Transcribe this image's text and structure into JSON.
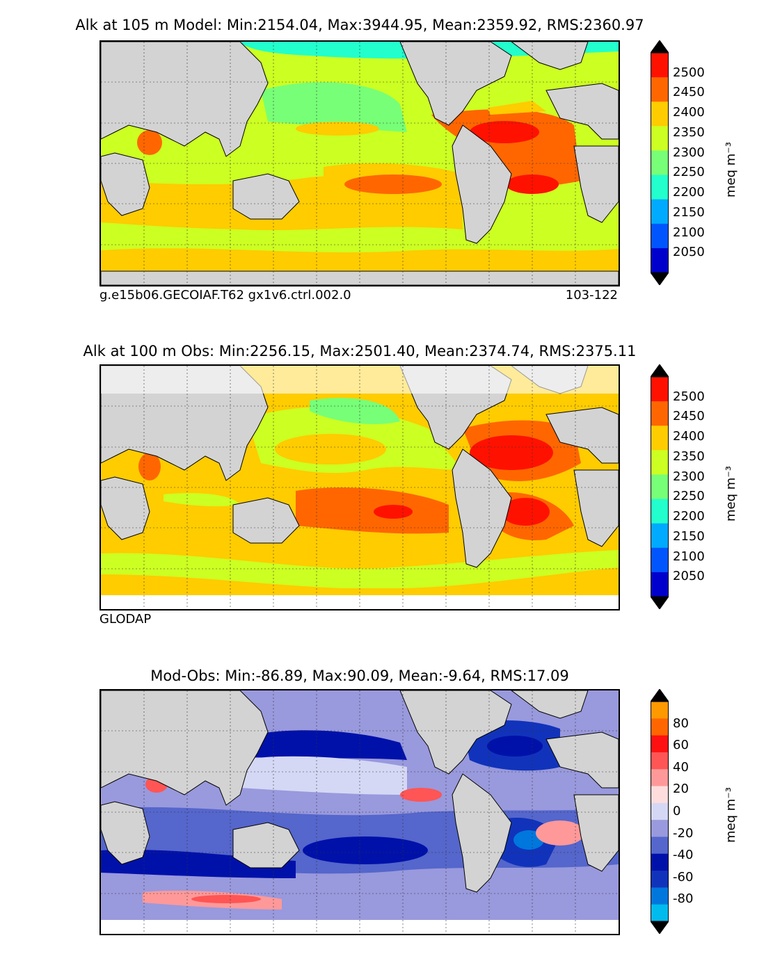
{
  "panels": [
    {
      "id": "model",
      "title": "Alk at 105 m Model: Min:2154.04, Max:3944.95, Mean:2359.92, RMS:2360.97",
      "footer_left": "g.e15b06.GECOIAF.T62 gx1v6.ctrl.002.0",
      "footer_right": "103-122",
      "colorbar": {
        "label": "meq m⁻³",
        "ticks": [
          "2050",
          "2100",
          "2150",
          "2200",
          "2250",
          "2300",
          "2350",
          "2400",
          "2450",
          "2500"
        ],
        "colors": [
          "#000066",
          "#0000cc",
          "#0055ff",
          "#00aaff",
          "#22ffcc",
          "#77ff77",
          "#ccff22",
          "#ffcc00",
          "#ff6600",
          "#ff1100",
          "#800000"
        ],
        "arrow_low": "#000000",
        "arrow_high": "#000000"
      }
    },
    {
      "id": "obs",
      "title": "Alk at 100 m Obs: Min:2256.15, Max:2501.40, Mean:2374.74, RMS:2375.11",
      "footer_left": "GLODAP",
      "colorbar": {
        "label": "meq m⁻³",
        "ticks": [
          "2050",
          "2100",
          "2150",
          "2200",
          "2250",
          "2300",
          "2350",
          "2400",
          "2450",
          "2500"
        ],
        "colors": [
          "#000066",
          "#0000cc",
          "#0055ff",
          "#00aaff",
          "#22ffcc",
          "#77ff77",
          "#ccff22",
          "#ffcc00",
          "#ff6600",
          "#ff1100",
          "#800000"
        ]
      }
    },
    {
      "id": "diff",
      "title": "Mod-Obs: Min:-86.89, Max:90.09, Mean:-9.64, RMS:17.09",
      "colorbar": {
        "label": "meq m⁻³",
        "ticks": [
          "-80",
          "-60",
          "-40",
          "-20",
          "0",
          "20",
          "40",
          "60",
          "80"
        ],
        "colors": [
          "#00ffff",
          "#00bbee",
          "#0077dd",
          "#1133bb",
          "#0011aa",
          "#5566cc",
          "#9999dd",
          "#d4d8f4",
          "#ffdddd",
          "#ff9999",
          "#ff5555",
          "#ff1111",
          "#ff6600",
          "#ff9900",
          "#ffff00"
        ]
      }
    }
  ],
  "chart_data": [
    {
      "type": "map-contour",
      "title": "Alk at 105 m Model: Min:2154.04, Max:3944.95, Mean:2359.92, RMS:2360.97",
      "variable": "Alk",
      "depth_m": 105,
      "min": 2154.04,
      "max": 3944.95,
      "mean": 2359.92,
      "rms": 2360.97,
      "units": "meq m^-3",
      "contour_levels": [
        2050,
        2100,
        2150,
        2200,
        2250,
        2300,
        2350,
        2400,
        2450,
        2500
      ]
    },
    {
      "type": "map-contour",
      "title": "Alk at 100 m Obs: Min:2256.15, Max:2501.40, Mean:2374.74, RMS:2375.11",
      "variable": "Alk",
      "depth_m": 100,
      "min": 2256.15,
      "max": 2501.4,
      "mean": 2374.74,
      "rms": 2375.11,
      "units": "meq m^-3",
      "contour_levels": [
        2050,
        2100,
        2150,
        2200,
        2250,
        2300,
        2350,
        2400,
        2450,
        2500
      ]
    },
    {
      "type": "map-contour",
      "title": "Mod-Obs: Min:-86.89, Max:90.09, Mean:-9.64, RMS:17.09",
      "min": -86.89,
      "max": 90.09,
      "mean": -9.64,
      "rms": 17.09,
      "units": "meq m^-3",
      "contour_levels": [
        -80,
        -70,
        -60,
        -50,
        -40,
        -30,
        -20,
        -10,
        0,
        10,
        20,
        30,
        40,
        50,
        60,
        70,
        80
      ]
    }
  ]
}
